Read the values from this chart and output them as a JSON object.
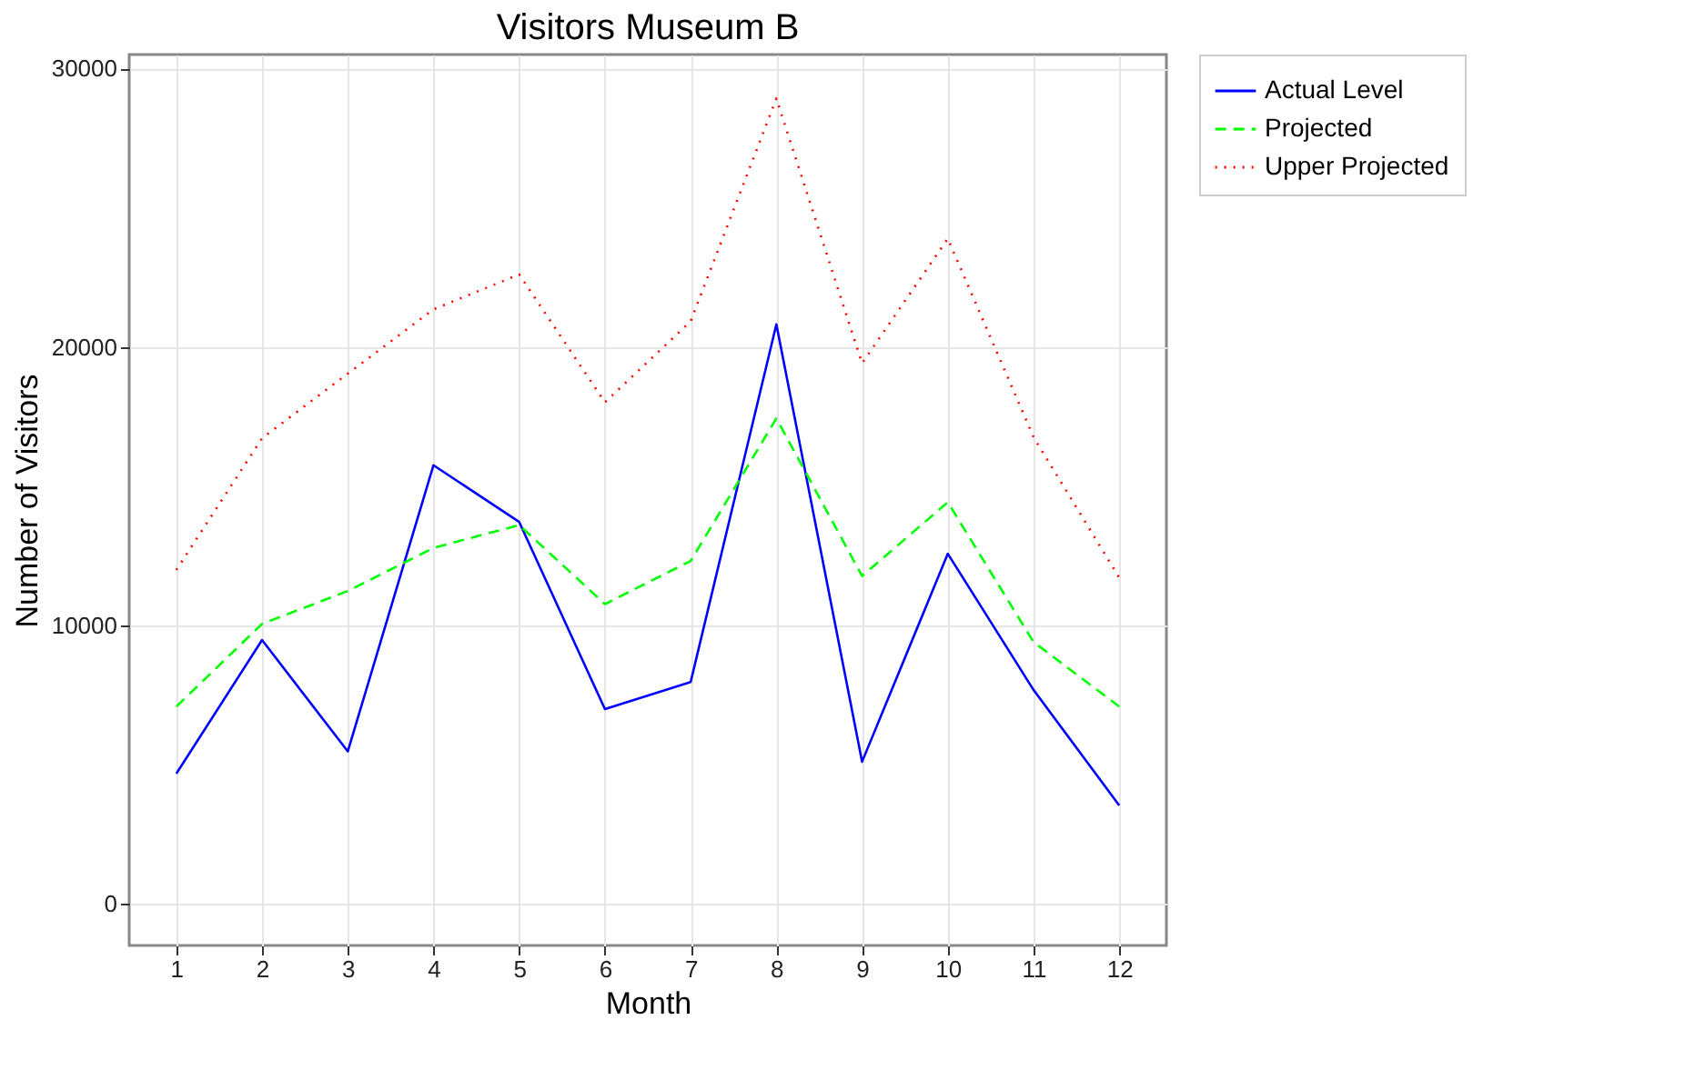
{
  "chart_data": {
    "type": "line",
    "title": "Visitors Museum B",
    "xlabel": "Month",
    "ylabel": "Number of Visitors",
    "x": [
      1,
      2,
      3,
      4,
      5,
      6,
      7,
      8,
      9,
      10,
      11,
      12
    ],
    "series": [
      {
        "name": "Actual Level",
        "color": "#0000ff",
        "line_style": "solid",
        "values": [
          4670,
          9470,
          5470,
          15750,
          13710,
          6990,
          7960,
          20810,
          5100,
          12570,
          7680,
          3530
        ]
      },
      {
        "name": "Projected",
        "color": "#00ff00",
        "line_style": "dashed",
        "values": [
          7080,
          10050,
          11230,
          12780,
          13600,
          10760,
          12310,
          17430,
          11770,
          14420,
          9400,
          7080
        ]
      },
      {
        "name": "Upper Projected",
        "color": "#ff0000",
        "line_style": "dotted",
        "values": [
          11990,
          16720,
          19040,
          21350,
          22600,
          18010,
          20920,
          28920,
          19410,
          23890,
          16760,
          11710
        ]
      }
    ],
    "xlim": [
      0.45,
      12.55
    ],
    "xticks": [
      1,
      2,
      3,
      4,
      5,
      6,
      7,
      8,
      9,
      10,
      11,
      12
    ],
    "ylim": [
      -1500,
      30500
    ],
    "yticks": [
      0,
      10000,
      20000,
      30000
    ],
    "grid": true,
    "legend": "right",
    "marker": "none"
  }
}
